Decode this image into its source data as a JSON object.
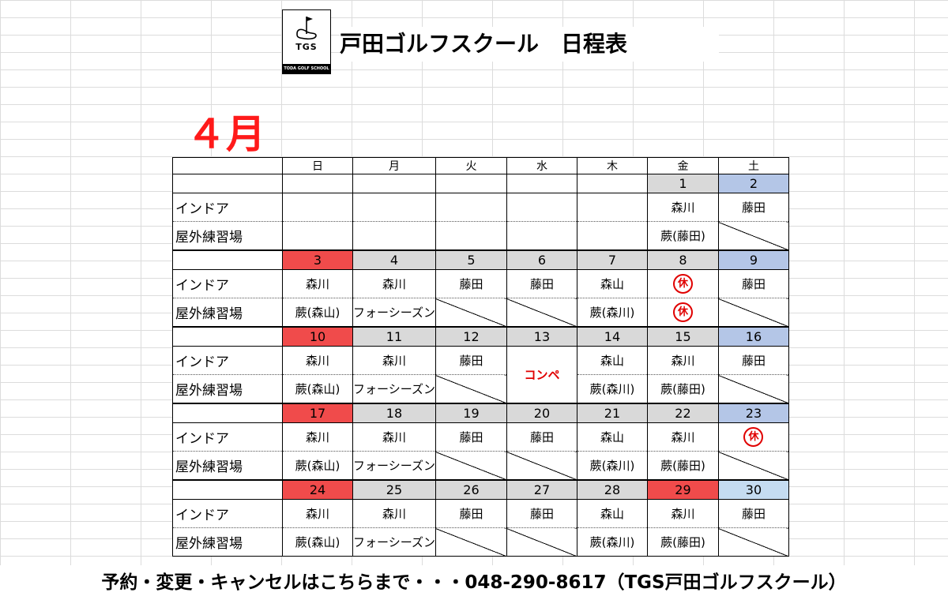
{
  "logo": {
    "text": "TGS",
    "subtext": "TODA GOLF SCHOOL"
  },
  "title": "戸田ゴルフスクール　日程表",
  "month": "４月",
  "weekdays": [
    "日",
    "月",
    "火",
    "水",
    "木",
    "金",
    "土"
  ],
  "row_labels": {
    "indoor": "インドア",
    "outdoor": "屋外練習場"
  },
  "closed_mark": "休",
  "comp_label": "コンペ",
  "colors": {
    "sunday": "#f04b4b",
    "saturday": "#b4c6e7",
    "weekday": "#d9d9d9",
    "holiday": "#f04b4b",
    "accent": "#e00000"
  },
  "weeks": [
    {
      "dates": [
        "",
        "",
        "",
        "",
        "",
        "1",
        "2"
      ],
      "indoor": [
        "",
        "",
        "",
        "",
        "",
        "森川",
        "藤田"
      ],
      "outdoor": [
        "",
        "",
        "",
        "",
        "",
        "蕨(藤田)",
        "/"
      ]
    },
    {
      "dates": [
        "3",
        "4",
        "5",
        "6",
        "7",
        "8",
        "9"
      ],
      "indoor": [
        "森川",
        "森川",
        "藤田",
        "藤田",
        "森山",
        "休",
        "藤田"
      ],
      "outdoor": [
        "蕨(森山)",
        "フォーシーズン",
        "/",
        "/",
        "蕨(森川)",
        "休",
        "/"
      ]
    },
    {
      "dates": [
        "10",
        "11",
        "12",
        "13",
        "14",
        "15",
        "16"
      ],
      "indoor": [
        "森川",
        "森川",
        "藤田",
        "コンペ",
        "森山",
        "森川",
        "藤田"
      ],
      "outdoor": [
        "蕨(森山)",
        "フォーシーズン",
        "/",
        "",
        "蕨(森川)",
        "蕨(藤田)",
        "/"
      ]
    },
    {
      "dates": [
        "17",
        "18",
        "19",
        "20",
        "21",
        "22",
        "23"
      ],
      "indoor": [
        "森川",
        "森川",
        "藤田",
        "藤田",
        "森山",
        "森川",
        "休"
      ],
      "outdoor": [
        "蕨(森山)",
        "フォーシーズン",
        "/",
        "/",
        "蕨(森川)",
        "蕨(藤田)",
        "/"
      ]
    },
    {
      "dates": [
        "24",
        "25",
        "26",
        "27",
        "28",
        "29",
        "30"
      ],
      "indoor": [
        "森川",
        "森川",
        "藤田",
        "藤田",
        "森山",
        "森川",
        "藤田"
      ],
      "outdoor": [
        "蕨(森山)",
        "フォーシーズン",
        "/",
        "/",
        "蕨(森川)",
        "蕨(藤田)",
        "/"
      ]
    }
  ],
  "footer": "予約・変更・キャンセルはこちらまで・・・048-290-8617（TGS戸田ゴルフスクール）"
}
